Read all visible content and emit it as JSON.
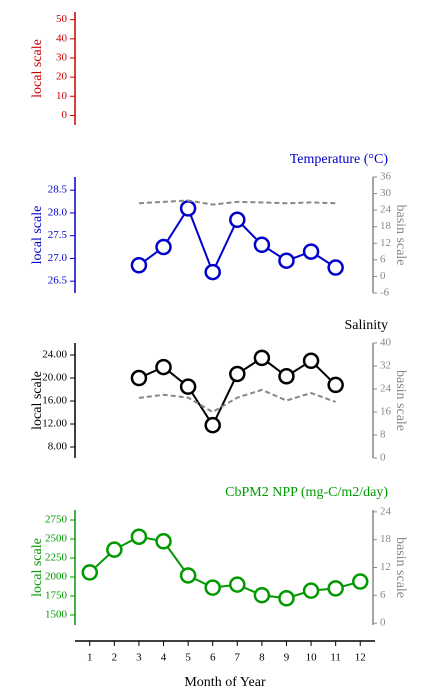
{
  "chart_data": [
    {
      "type": "line",
      "ylabel": "local scale",
      "color": "#cc0000",
      "ylim": [
        -5,
        54
      ],
      "yticks": [
        0,
        10,
        20,
        30,
        40,
        50
      ]
    },
    {
      "type": "line",
      "title": "Temperature (°C)",
      "ylabel": "local scale",
      "y2label": "basin scale",
      "color": "#0000cc",
      "ylim": [
        26.24,
        28.79
      ],
      "yticks": [
        26.5,
        {
          "value": 27,
          "label": "27.0"
        },
        27.5,
        {
          "value": 28,
          "label": "28.0"
        },
        28.5
      ],
      "y2lim": [
        -6,
        36
      ],
      "y2ticks": [
        -6,
        0,
        6,
        12,
        18,
        24,
        30,
        36
      ],
      "x": [
        3,
        4,
        5,
        6,
        7,
        8,
        9,
        10,
        11
      ],
      "series": [
        {
          "color": "#0000cc",
          "values": [
            26.85,
            27.25,
            28.1,
            26.7,
            27.85,
            27.3,
            26.95,
            27.15,
            26.8
          ]
        },
        {
          "axis": "y2",
          "dash": true,
          "color": "#888888",
          "values": [
            26.5,
            27,
            27.5,
            26,
            27,
            26.8,
            26.5,
            26.8,
            26.5
          ]
        }
      ]
    },
    {
      "type": "line",
      "title": "Salinity",
      "ylabel": "local scale",
      "y2label": "basin scale",
      "color": "#000000",
      "ylim": [
        6.09,
        26.09
      ],
      "yticks": [
        {
          "value": 8,
          "label": "8.00"
        },
        {
          "value": 12,
          "label": "12.00"
        },
        {
          "value": 16,
          "label": "16.00"
        },
        {
          "value": 20,
          "label": "20.00"
        },
        {
          "value": 24,
          "label": "24.00"
        }
      ],
      "y2lim": [
        0,
        40
      ],
      "y2ticks": [
        0,
        8,
        16,
        24,
        32,
        40
      ],
      "x": [
        3,
        4,
        5,
        6,
        7,
        8,
        9,
        10,
        11
      ],
      "series": [
        {
          "color": "#000000",
          "values": [
            20.0,
            21.9,
            18.5,
            11.8,
            20.7,
            23.5,
            20.3,
            23.0,
            18.8
          ]
        },
        {
          "axis": "y2",
          "dash": true,
          "color": "#888888",
          "values": [
            20.9,
            22,
            21,
            16,
            21,
            23.7,
            20,
            22.6,
            19.5
          ]
        }
      ]
    },
    {
      "type": "line",
      "title": "CbPM2 NPP (mg-C/m2/day)",
      "ylabel": "local scale",
      "y2label": "basin scale",
      "color": "#009900",
      "ylim": [
        1368,
        2882
      ],
      "yticks": [
        1500,
        1750,
        2000,
        2250,
        2500,
        2750
      ],
      "y2lim": [
        -0.4,
        24.4
      ],
      "y2ticks": [
        0,
        6,
        12,
        18,
        24
      ],
      "x": [
        1,
        2,
        3,
        4,
        5,
        6,
        7,
        8,
        9,
        10,
        11,
        12
      ],
      "series": [
        {
          "color": "#009900",
          "values": [
            2060,
            2360,
            2530,
            2470,
            2020,
            1860,
            1900,
            1760,
            1720,
            1820,
            1850,
            1940
          ]
        }
      ],
      "xlabel": "Month of Year",
      "xlim": [
        0.4,
        12.6
      ],
      "xticks": [
        1,
        2,
        3,
        4,
        5,
        6,
        7,
        8,
        9,
        10,
        11,
        12
      ]
    }
  ]
}
